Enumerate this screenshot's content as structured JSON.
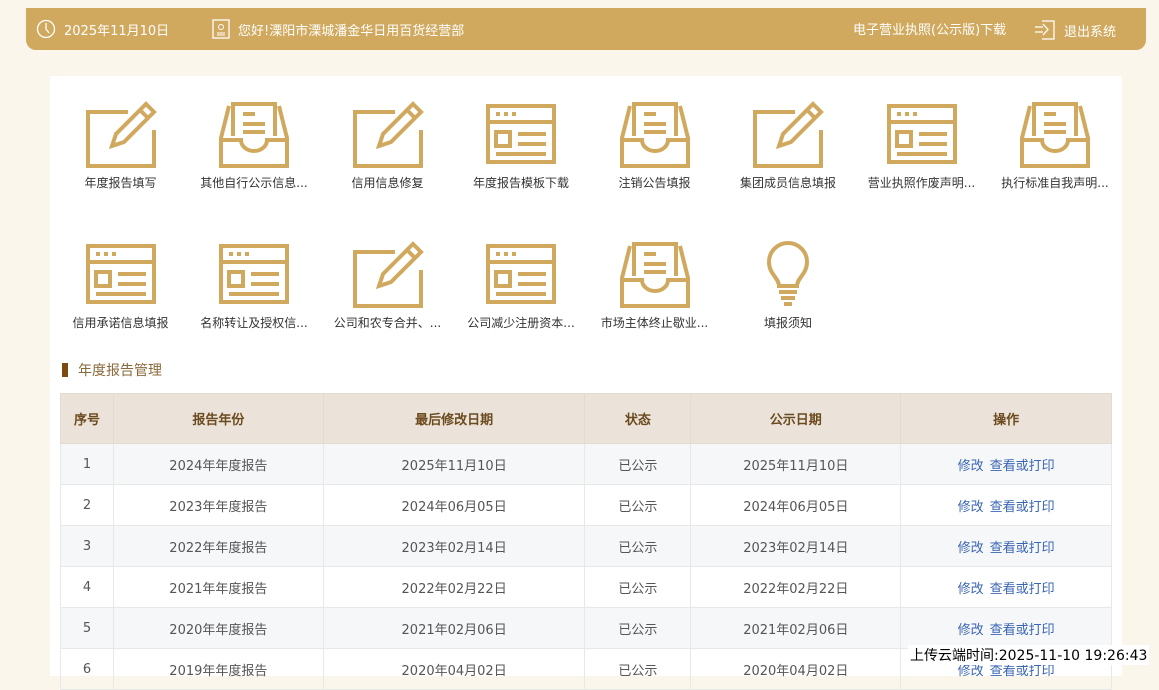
{
  "header": {
    "date": "2025年11月10日",
    "greeting": "您好!溧阳市溧城潘金华日用百货经营部",
    "license_download": "电子营业执照(公示版)下载",
    "logout": "退出系统",
    "accent": "#d0a95e"
  },
  "tiles": [
    {
      "label": "年度报告填写",
      "icon": "pencil"
    },
    {
      "label": "其他自行公示信息...",
      "icon": "inbox"
    },
    {
      "label": "信用信息修复",
      "icon": "pencil"
    },
    {
      "label": "年度报告模板下载",
      "icon": "form"
    },
    {
      "label": "注销公告填报",
      "icon": "inbox"
    },
    {
      "label": "集团成员信息填报",
      "icon": "pencil"
    },
    {
      "label": "营业执照作废声明...",
      "icon": "form"
    },
    {
      "label": "执行标准自我声明...",
      "icon": "inbox"
    },
    {
      "label": "信用承诺信息填报",
      "icon": "form"
    },
    {
      "label": "名称转让及授权信...",
      "icon": "form"
    },
    {
      "label": "公司和农专合并、...",
      "icon": "pencil"
    },
    {
      "label": "公司减少注册资本...",
      "icon": "form"
    },
    {
      "label": "市场主体终止歇业...",
      "icon": "inbox"
    },
    {
      "label": "填报须知",
      "icon": "bulb"
    }
  ],
  "section_title": "年度报告管理",
  "table": {
    "headers": [
      "序号",
      "报告年份",
      "最后修改日期",
      "状态",
      "公示日期",
      "操作"
    ],
    "actions": {
      "edit": "修改",
      "view": "查看或打印"
    },
    "rows": [
      [
        "1",
        "2024年年度报告",
        "2025年11月10日",
        "已公示",
        "2025年11月10日"
      ],
      [
        "2",
        "2023年年度报告",
        "2024年06月05日",
        "已公示",
        "2024年06月05日"
      ],
      [
        "3",
        "2022年年度报告",
        "2023年02月14日",
        "已公示",
        "2023年02月14日"
      ],
      [
        "4",
        "2021年年度报告",
        "2022年02月22日",
        "已公示",
        "2022年02月22日"
      ],
      [
        "5",
        "2020年年度报告",
        "2021年02月06日",
        "已公示",
        "2021年02月06日"
      ],
      [
        "6",
        "2019年年度报告",
        "2020年04月02日",
        "已公示",
        "2020年04月02日"
      ]
    ]
  },
  "upload_time": "上传云端时间:2025-11-10 19:26:43"
}
